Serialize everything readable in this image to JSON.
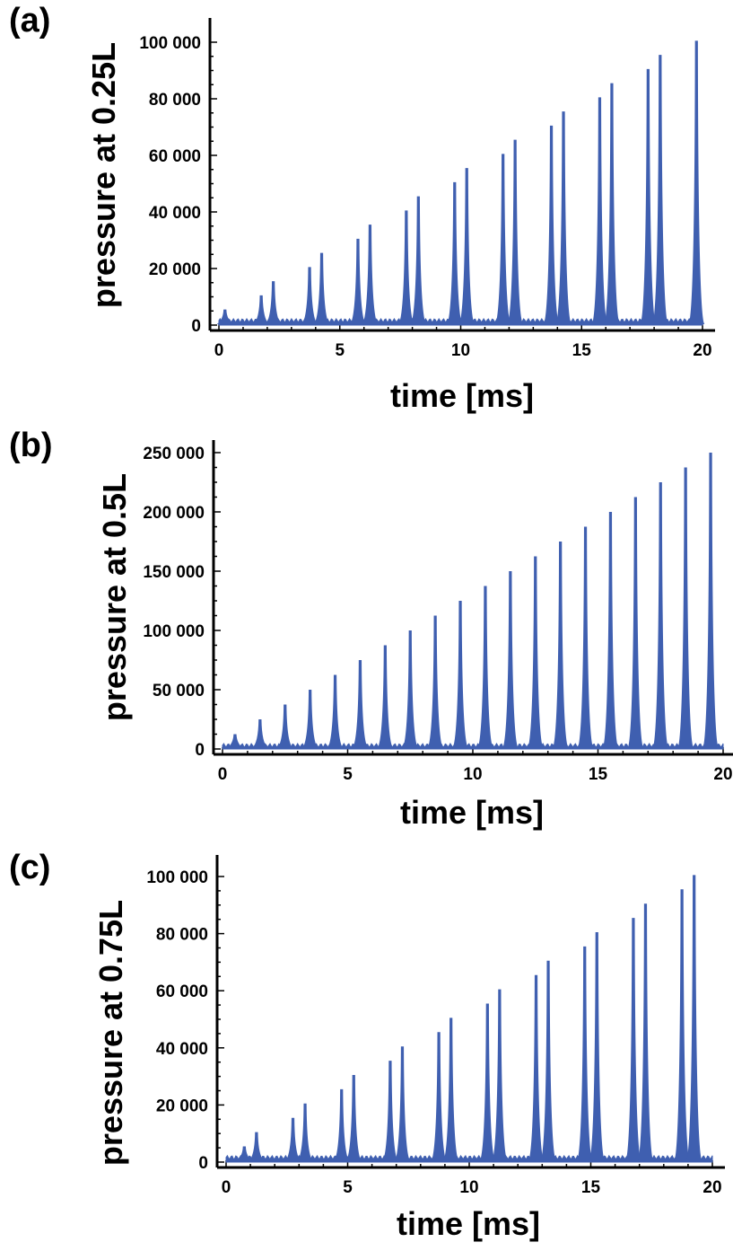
{
  "colors": {
    "series": "#3f5fb0",
    "axis": "#000000",
    "background": "#ffffff"
  },
  "chart_data": [
    {
      "type": "line",
      "panel_label": "(a)",
      "xlabel": "time [ms]",
      "ylabel": "pressure at 0.25L",
      "xlim": [
        0,
        20
      ],
      "ylim": [
        0,
        100000
      ],
      "xticks": [
        0,
        5,
        10,
        15,
        20
      ],
      "xtick_labels": [
        "0",
        "5",
        "10",
        "15",
        "20"
      ],
      "yticks": [
        0,
        20000,
        40000,
        60000,
        80000,
        100000
      ],
      "ytick_labels": [
        "0",
        "20 000",
        "40 000",
        "60 000",
        "80 000",
        "100 000"
      ],
      "baseline": 1000,
      "peaks": {
        "t": [
          0.25,
          1.75,
          2.25,
          3.75,
          4.25,
          5.75,
          6.25,
          7.75,
          8.25,
          9.75,
          10.25,
          11.75,
          12.25,
          13.75,
          14.25,
          15.75,
          16.25,
          17.75,
          18.25,
          19.75
        ],
        "p": [
          5500,
          10500,
          15500,
          20500,
          25500,
          30500,
          35500,
          40500,
          45500,
          50500,
          55500,
          60500,
          65500,
          70500,
          75500,
          80500,
          85500,
          90500,
          95500,
          100500
        ]
      }
    },
    {
      "type": "line",
      "panel_label": "(b)",
      "xlabel": "time [ms]",
      "ylabel": "pressure at 0.5L",
      "xlim": [
        0,
        20
      ],
      "ylim": [
        0,
        250000
      ],
      "xticks": [
        0,
        5,
        10,
        15,
        20
      ],
      "xtick_labels": [
        "0",
        "5",
        "10",
        "15",
        "20"
      ],
      "yticks": [
        0,
        50000,
        100000,
        150000,
        200000,
        250000
      ],
      "ytick_labels": [
        "0",
        "50 000",
        "100 000",
        "150 000",
        "200 000",
        "250 000"
      ],
      "baseline": 1500,
      "peaks": {
        "t": [
          0.5,
          1.5,
          2.5,
          3.5,
          4.5,
          5.5,
          6.5,
          7.5,
          8.5,
          9.5,
          10.5,
          11.5,
          12.5,
          13.5,
          14.5,
          15.5,
          16.5,
          17.5,
          18.5,
          19.5
        ],
        "p": [
          12500,
          25000,
          37500,
          50000,
          62500,
          75000,
          87500,
          100000,
          112500,
          125000,
          137500,
          150000,
          162500,
          175000,
          187500,
          200000,
          212500,
          225000,
          237500,
          250000
        ]
      }
    },
    {
      "type": "line",
      "panel_label": "(c)",
      "xlabel": "time [ms]",
      "ylabel": "pressure at 0.75L",
      "xlim": [
        0,
        20
      ],
      "ylim": [
        0,
        100000
      ],
      "xticks": [
        0,
        5,
        10,
        15,
        20
      ],
      "xtick_labels": [
        "0",
        "5",
        "10",
        "15",
        "20"
      ],
      "yticks": [
        0,
        20000,
        40000,
        60000,
        80000,
        100000
      ],
      "ytick_labels": [
        "0",
        "20 000",
        "40 000",
        "60 000",
        "80 000",
        "100 000"
      ],
      "baseline": 1000,
      "peaks": {
        "t": [
          0.75,
          1.25,
          2.75,
          3.25,
          4.75,
          5.25,
          6.75,
          7.25,
          8.75,
          9.25,
          10.75,
          11.25,
          12.75,
          13.25,
          14.75,
          15.25,
          16.75,
          17.25,
          18.75,
          19.25
        ],
        "p": [
          5500,
          10500,
          15500,
          20500,
          25500,
          30500,
          35500,
          40500,
          45500,
          50500,
          55500,
          60500,
          65500,
          70500,
          75500,
          80500,
          85500,
          90500,
          95500,
          100500
        ]
      }
    }
  ]
}
